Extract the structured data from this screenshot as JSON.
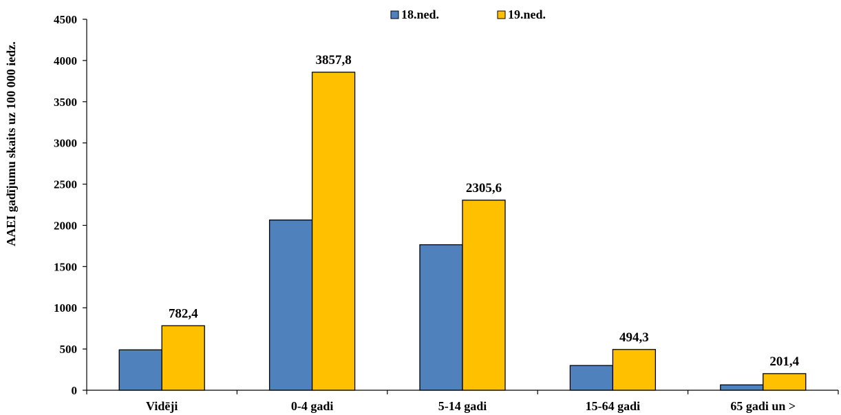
{
  "chart_data": {
    "type": "bar",
    "title": "",
    "xlabel": "",
    "ylabel": "AAEI gadījumu skaits uz 100 000 iedz.",
    "ylim": [
      0,
      4500
    ],
    "yticks": [
      0,
      500,
      1000,
      1500,
      2000,
      2500,
      3000,
      3500,
      4000,
      4500
    ],
    "categories": [
      "Vidēji",
      "0-4 gadi",
      "5-14 gadi",
      "15-64 gadi",
      "65 gadi un >"
    ],
    "series": [
      {
        "name": "18.ned.",
        "color": "#4F81BD",
        "values": [
          490,
          2065,
          1765,
          300,
          65
        ],
        "data_labels": [
          null,
          null,
          null,
          null,
          null
        ]
      },
      {
        "name": "19.ned.",
        "color": "#FFC000",
        "values": [
          782.4,
          3857.8,
          2305.6,
          494.3,
          201.4
        ],
        "data_labels": [
          "782,4",
          "3857,8",
          "2305,6",
          "494,3",
          "201,4"
        ]
      }
    ],
    "grid": false,
    "legend_position": "top"
  }
}
